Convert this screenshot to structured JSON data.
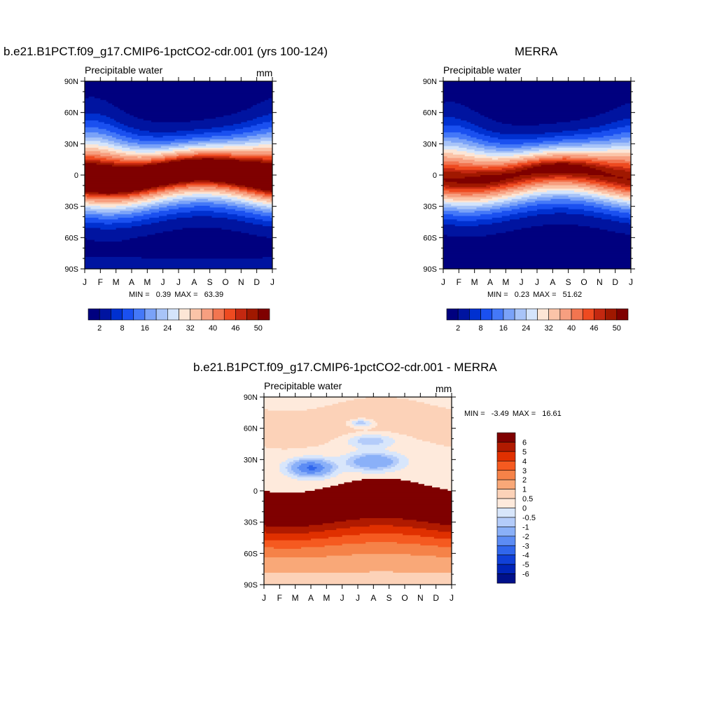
{
  "chart_data": [
    {
      "type": "heatmap",
      "title": "b.e21.B1PCT.f09_g17.CMIP6-1pctCO2-cdr.001 (yrs 100-124)",
      "left_string": "Precipitable water",
      "right_string": "mm",
      "x_tick_labels": [
        "J",
        "F",
        "M",
        "A",
        "M",
        "J",
        "J",
        "A",
        "S",
        "O",
        "N",
        "D",
        "J"
      ],
      "y_tick_labels": [
        "90N",
        "60N",
        "30N",
        "0",
        "30S",
        "60S",
        "90S"
      ],
      "ylim": [
        -90,
        90
      ],
      "min_label": "MIN =",
      "min": "0.39",
      "max_label": "MAX =",
      "max": "63.39",
      "colorbar_tick_labels": [
        "2",
        "8",
        "16",
        "24",
        "32",
        "40",
        "46",
        "50"
      ],
      "colorbar_levels": [
        2,
        5,
        8,
        12,
        16,
        20,
        24,
        28,
        32,
        36,
        40,
        43,
        46,
        48,
        50
      ]
    },
    {
      "type": "heatmap",
      "title": "MERRA",
      "left_string": "Precipitable water",
      "right_string": "",
      "x_tick_labels": [
        "J",
        "F",
        "M",
        "A",
        "M",
        "J",
        "J",
        "A",
        "S",
        "O",
        "N",
        "D",
        "J"
      ],
      "y_tick_labels": [
        "90N",
        "60N",
        "30N",
        "0",
        "30S",
        "60S",
        "90S"
      ],
      "ylim": [
        -90,
        90
      ],
      "min_label": "MIN =",
      "min": "0.23",
      "max_label": "MAX =",
      "max": "51.62",
      "colorbar_tick_labels": [
        "2",
        "8",
        "16",
        "24",
        "32",
        "40",
        "46",
        "50"
      ],
      "colorbar_levels": [
        2,
        5,
        8,
        12,
        16,
        20,
        24,
        28,
        32,
        36,
        40,
        43,
        46,
        48,
        50
      ]
    },
    {
      "type": "heatmap",
      "title": "b.e21.B1PCT.f09_g17.CMIP6-1pctCO2-cdr.001 - MERRA",
      "left_string": "Precipitable water",
      "right_string": "mm",
      "x_tick_labels": [
        "J",
        "F",
        "M",
        "A",
        "M",
        "J",
        "J",
        "A",
        "S",
        "O",
        "N",
        "D",
        "J"
      ],
      "y_tick_labels": [
        "90N",
        "60N",
        "30N",
        "0",
        "30S",
        "60S",
        "90S"
      ],
      "ylim": [
        -90,
        90
      ],
      "min_label": "MIN =",
      "min": "-3.49",
      "max_label": "MAX =",
      "max": "16.61",
      "colorbar_tick_labels": [
        "6",
        "5",
        "4",
        "3",
        "2",
        "1",
        "0.5",
        "0",
        "-0.5",
        "-1",
        "-2",
        "-3",
        "-4",
        "-5",
        "-6"
      ]
    }
  ],
  "palettes": {
    "absolute": [
      "#00007f",
      "#0014a0",
      "#0030d0",
      "#1a50f0",
      "#4478f8",
      "#7aa2f8",
      "#a8c4f8",
      "#d4e4fb",
      "#fce6d6",
      "#fbc4a8",
      "#f79f80",
      "#f27550",
      "#ee4a20",
      "#c42810",
      "#a01800",
      "#7f0000"
    ],
    "difference": [
      "#7f0000",
      "#b01a00",
      "#e03000",
      "#f55a20",
      "#f58248",
      "#f9a878",
      "#fcd2b8",
      "#feeadc",
      "#d8e6fb",
      "#b4ccfa",
      "#8ab0f8",
      "#5c8cf4",
      "#3066ec",
      "#1040d8",
      "#0024b8",
      "#00108a"
    ]
  }
}
